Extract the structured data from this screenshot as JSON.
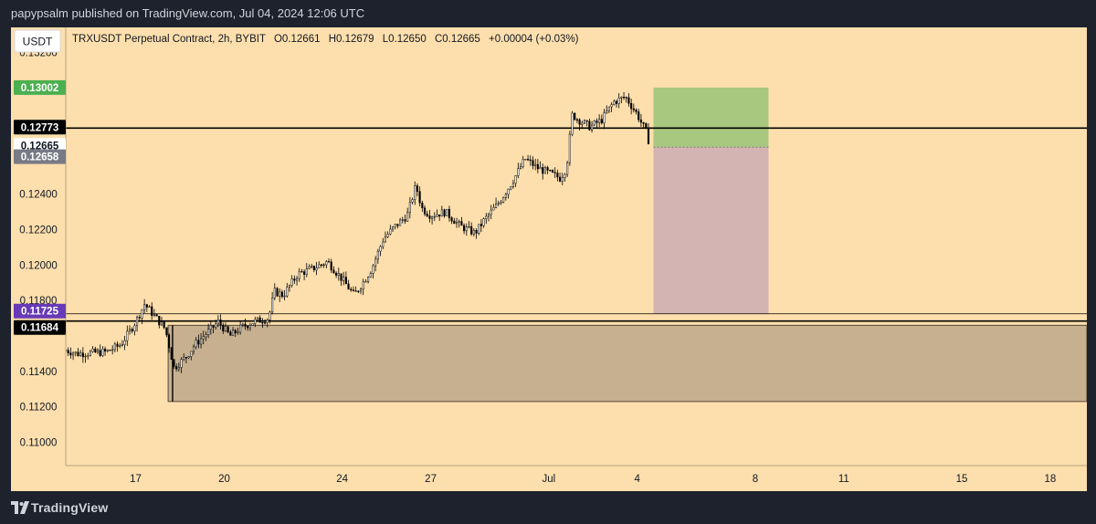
{
  "header": {
    "published_text": "papypsalm published on TradingView.com, Jul 04, 2024 12:06 UTC"
  },
  "footer": {
    "brand": "TradingView"
  },
  "legend": {
    "currency_button": "USDT",
    "symbol_line": "TRXUSDT Perpetual Contract, 2h, BYBIT",
    "open": "O0.12661",
    "high": "H0.12679",
    "low": "L0.12650",
    "close": "C0.12665",
    "change": "+0.00004 (+0.03%)"
  },
  "colors": {
    "background": "#1e222d",
    "chart_bg": "#fddfad",
    "candle_up": "#ffffff",
    "candle_down": "#000000",
    "take_profit_zone": "#a8c77f",
    "stop_loss_zone": "#d4b3b3",
    "demand_zone": "#c7b08f",
    "price_line": "#000000",
    "tp_label": "#4caf50",
    "support_label": "#673ab7",
    "prev_close_label": "#787b86"
  },
  "chart_data": {
    "type": "candlestick",
    "title": "TRXUSDT Perpetual Contract, 2h, BYBIT",
    "ylim": [
      0.1092,
      0.133
    ],
    "y_ticks": [
      "0.13200",
      "0.12400",
      "0.12200",
      "0.12000",
      "0.11800",
      "0.11400",
      "0.11200",
      "0.11000"
    ],
    "x_ticks": [
      {
        "label": "17",
        "day": 17
      },
      {
        "label": "20",
        "day": 20
      },
      {
        "label": "24",
        "day": 24
      },
      {
        "label": "27",
        "day": 27
      },
      {
        "label": "Jul",
        "day": 31
      },
      {
        "label": "4",
        "day": 34
      },
      {
        "label": "8",
        "day": 38
      },
      {
        "label": "11",
        "day": 41
      },
      {
        "label": "15",
        "day": 45
      },
      {
        "label": "18",
        "day": 48
      }
    ],
    "x_range_days": [
      14.63,
      49.24
    ],
    "price_path": [
      [
        14.63,
        0.1152
      ],
      [
        15.0,
        0.115
      ],
      [
        16.0,
        0.1151
      ],
      [
        16.5,
        0.1155
      ],
      [
        17.0,
        0.1168
      ],
      [
        17.3,
        0.1178
      ],
      [
        17.6,
        0.1172
      ],
      [
        18.0,
        0.1164
      ],
      [
        18.3,
        0.1142
      ],
      [
        18.7,
        0.1148
      ],
      [
        19.0,
        0.1155
      ],
      [
        19.5,
        0.1163
      ],
      [
        19.8,
        0.1168
      ],
      [
        20.2,
        0.116
      ],
      [
        20.6,
        0.1165
      ],
      [
        21.0,
        0.1168
      ],
      [
        21.5,
        0.117
      ],
      [
        21.7,
        0.1185
      ],
      [
        22.0,
        0.1183
      ],
      [
        22.5,
        0.1195
      ],
      [
        23.0,
        0.1198
      ],
      [
        23.5,
        0.1202
      ],
      [
        24.0,
        0.1192
      ],
      [
        24.4,
        0.1183
      ],
      [
        24.7,
        0.119
      ],
      [
        25.0,
        0.1198
      ],
      [
        25.4,
        0.1215
      ],
      [
        25.8,
        0.1222
      ],
      [
        26.2,
        0.1228
      ],
      [
        26.5,
        0.1245
      ],
      [
        26.7,
        0.1232
      ],
      [
        27.0,
        0.1228
      ],
      [
        27.5,
        0.123
      ],
      [
        28.0,
        0.1222
      ],
      [
        28.5,
        0.1218
      ],
      [
        28.8,
        0.1225
      ],
      [
        29.3,
        0.1235
      ],
      [
        29.8,
        0.1248
      ],
      [
        30.2,
        0.126
      ],
      [
        30.6,
        0.1255
      ],
      [
        31.0,
        0.1252
      ],
      [
        31.4,
        0.1249
      ],
      [
        31.6,
        0.1255
      ],
      [
        31.8,
        0.1285
      ],
      [
        32.0,
        0.1282
      ],
      [
        32.4,
        0.1278
      ],
      [
        32.8,
        0.1282
      ],
      [
        33.2,
        0.1292
      ],
      [
        33.6,
        0.1295
      ],
      [
        34.0,
        0.1285
      ],
      [
        34.3,
        0.1275
      ],
      [
        34.45,
        0.12665
      ]
    ],
    "annotations": {
      "resistance": 0.12773,
      "support": 0.11684,
      "take_profit": 0.13002,
      "entry": 0.12665,
      "stop_loss": 0.11725,
      "last_price": 0.12665,
      "prev_close": 0.12658,
      "demand_zone": {
        "top": 0.1166,
        "bottom": 0.1123,
        "start_day": 18.1
      },
      "position_box": {
        "start_day": 34.55,
        "end_day": 38.45
      }
    },
    "price_labels": [
      {
        "text": "0.13002",
        "value": 0.13002,
        "style": "tp"
      },
      {
        "text": "0.12773",
        "value": 0.12773,
        "style": "dark"
      },
      {
        "text": "0.12665",
        "value": 0.12665,
        "style": "light"
      },
      {
        "text": "0.12658",
        "value": 0.12658,
        "style": "grey"
      },
      {
        "text": "0.11725",
        "value": 0.11725,
        "style": "purple"
      },
      {
        "text": "0.11684",
        "value": 0.11684,
        "style": "dark"
      }
    ]
  }
}
